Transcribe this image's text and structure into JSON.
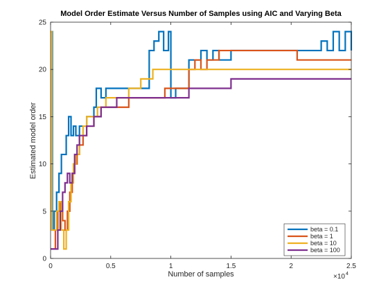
{
  "chart_data": {
    "type": "line",
    "title": "Model Order Estimate Versus Number of Samples using AIC and Varying Beta",
    "xlabel": "Number of samples",
    "ylabel": "Estimated model order",
    "x_exponent_base": "×10",
    "x_exponent_power": "4",
    "xlim": [
      0,
      25000
    ],
    "ylim": [
      0,
      25
    ],
    "x_ticks": [
      0,
      5000,
      10000,
      15000,
      20000,
      25000
    ],
    "x_tick_labels": [
      "0",
      "0.5",
      "1",
      "1.5",
      "2",
      "2.5"
    ],
    "y_ticks": [
      0,
      5,
      10,
      15,
      20,
      25
    ],
    "y_tick_labels": [
      "0",
      "5",
      "10",
      "15",
      "20",
      "25"
    ],
    "grid": false,
    "legend_position": "bottom-right",
    "series": [
      {
        "name": "beta = 0.1",
        "color": "#0072BD",
        "points": [
          [
            0,
            24
          ],
          [
            150,
            3
          ],
          [
            300,
            5
          ],
          [
            500,
            7
          ],
          [
            700,
            9
          ],
          [
            900,
            11
          ],
          [
            1100,
            11
          ],
          [
            1300,
            13
          ],
          [
            1500,
            15
          ],
          [
            1700,
            13
          ],
          [
            1900,
            14
          ],
          [
            2100,
            13
          ],
          [
            2400,
            14
          ],
          [
            2700,
            14
          ],
          [
            3000,
            15
          ],
          [
            3300,
            15
          ],
          [
            3600,
            16
          ],
          [
            3800,
            18
          ],
          [
            4200,
            17
          ],
          [
            4600,
            18
          ],
          [
            5000,
            18
          ],
          [
            5500,
            18
          ],
          [
            6000,
            18
          ],
          [
            6500,
            18
          ],
          [
            7000,
            18
          ],
          [
            7500,
            18
          ],
          [
            8000,
            18
          ],
          [
            8200,
            22
          ],
          [
            8600,
            23
          ],
          [
            9000,
            24
          ],
          [
            9400,
            22
          ],
          [
            9800,
            24
          ],
          [
            10000,
            17
          ],
          [
            10400,
            18
          ],
          [
            11000,
            18
          ],
          [
            11500,
            21
          ],
          [
            12000,
            21
          ],
          [
            12500,
            22
          ],
          [
            13000,
            21
          ],
          [
            13500,
            22
          ],
          [
            14000,
            21
          ],
          [
            15000,
            22
          ],
          [
            16000,
            22
          ],
          [
            17000,
            22
          ],
          [
            18000,
            22
          ],
          [
            19000,
            22
          ],
          [
            20000,
            22
          ],
          [
            21000,
            22
          ],
          [
            22000,
            22
          ],
          [
            22500,
            23
          ],
          [
            23000,
            22
          ],
          [
            23500,
            24
          ],
          [
            24000,
            22
          ],
          [
            24500,
            24
          ],
          [
            25000,
            22
          ]
        ]
      },
      {
        "name": "beta = 1",
        "color": "#D95319",
        "points": [
          [
            0,
            1
          ],
          [
            150,
            1
          ],
          [
            400,
            3
          ],
          [
            600,
            5
          ],
          [
            800,
            6
          ],
          [
            1000,
            4
          ],
          [
            1200,
            3
          ],
          [
            1400,
            5
          ],
          [
            1600,
            7
          ],
          [
            1800,
            9
          ],
          [
            2000,
            10
          ],
          [
            2200,
            11
          ],
          [
            2400,
            12
          ],
          [
            2700,
            13
          ],
          [
            3000,
            14
          ],
          [
            3300,
            14
          ],
          [
            3600,
            15
          ],
          [
            3900,
            15
          ],
          [
            4200,
            16
          ],
          [
            4600,
            16
          ],
          [
            5000,
            16
          ],
          [
            5500,
            16
          ],
          [
            6000,
            16
          ],
          [
            6500,
            17
          ],
          [
            7000,
            17
          ],
          [
            7500,
            17
          ],
          [
            8000,
            17
          ],
          [
            8500,
            17
          ],
          [
            9000,
            17
          ],
          [
            9500,
            18
          ],
          [
            10000,
            18
          ],
          [
            10500,
            18
          ],
          [
            11000,
            18
          ],
          [
            11500,
            20
          ],
          [
            12000,
            21
          ],
          [
            12500,
            20
          ],
          [
            13000,
            21
          ],
          [
            14000,
            22
          ],
          [
            15000,
            22
          ],
          [
            16000,
            22
          ],
          [
            17000,
            22
          ],
          [
            18000,
            22
          ],
          [
            19000,
            22
          ],
          [
            20000,
            22
          ],
          [
            20500,
            21
          ],
          [
            21000,
            21
          ],
          [
            22000,
            21
          ],
          [
            23000,
            21
          ],
          [
            24000,
            21
          ],
          [
            25000,
            21
          ]
        ]
      },
      {
        "name": "beta = 10",
        "color": "#EDB120",
        "points": [
          [
            0,
            24
          ],
          [
            100,
            3
          ],
          [
            300,
            3
          ],
          [
            500,
            5
          ],
          [
            700,
            6
          ],
          [
            900,
            3
          ],
          [
            1100,
            1
          ],
          [
            1300,
            3
          ],
          [
            1500,
            6
          ],
          [
            1700,
            8
          ],
          [
            1900,
            10
          ],
          [
            2100,
            11
          ],
          [
            2400,
            13
          ],
          [
            2700,
            14
          ],
          [
            3000,
            15
          ],
          [
            3300,
            15
          ],
          [
            3600,
            15
          ],
          [
            3900,
            16
          ],
          [
            4200,
            16
          ],
          [
            4600,
            17
          ],
          [
            5000,
            17
          ],
          [
            5500,
            17
          ],
          [
            6000,
            17
          ],
          [
            6500,
            18
          ],
          [
            7000,
            18
          ],
          [
            7500,
            19
          ],
          [
            8000,
            19
          ],
          [
            8500,
            20
          ],
          [
            9000,
            20
          ],
          [
            9500,
            20
          ],
          [
            10000,
            20
          ],
          [
            10500,
            20
          ],
          [
            11000,
            20
          ],
          [
            11500,
            20
          ],
          [
            12000,
            20
          ],
          [
            12500,
            20
          ],
          [
            13000,
            20
          ],
          [
            13500,
            20
          ],
          [
            14000,
            20
          ],
          [
            15000,
            20
          ],
          [
            16000,
            20
          ],
          [
            17000,
            20
          ],
          [
            18000,
            20
          ],
          [
            19000,
            20
          ],
          [
            20000,
            20
          ],
          [
            21000,
            20
          ],
          [
            22000,
            20
          ],
          [
            23000,
            20
          ],
          [
            24000,
            20
          ],
          [
            25000,
            20
          ]
        ]
      },
      {
        "name": "beta = 100",
        "color": "#7E2F8E",
        "points": [
          [
            0,
            1
          ],
          [
            200,
            1
          ],
          [
            400,
            1
          ],
          [
            600,
            3
          ],
          [
            800,
            5
          ],
          [
            1000,
            7
          ],
          [
            1200,
            8
          ],
          [
            1400,
            9
          ],
          [
            1600,
            8
          ],
          [
            1800,
            9
          ],
          [
            2000,
            11
          ],
          [
            2200,
            12
          ],
          [
            2400,
            13
          ],
          [
            2700,
            13
          ],
          [
            3000,
            14
          ],
          [
            3300,
            14
          ],
          [
            3600,
            15
          ],
          [
            3900,
            15
          ],
          [
            4200,
            16
          ],
          [
            4600,
            16
          ],
          [
            5000,
            16
          ],
          [
            5500,
            17
          ],
          [
            6000,
            17
          ],
          [
            6500,
            17
          ],
          [
            7000,
            17
          ],
          [
            7500,
            17
          ],
          [
            8000,
            17
          ],
          [
            8500,
            17
          ],
          [
            9000,
            17
          ],
          [
            9500,
            17
          ],
          [
            10000,
            17
          ],
          [
            10500,
            17
          ],
          [
            11000,
            17
          ],
          [
            11500,
            18
          ],
          [
            12000,
            18
          ],
          [
            12500,
            18
          ],
          [
            13000,
            18
          ],
          [
            13500,
            18
          ],
          [
            14000,
            18
          ],
          [
            15000,
            19
          ],
          [
            15500,
            19
          ],
          [
            16000,
            19
          ],
          [
            17000,
            19
          ],
          [
            18000,
            19
          ],
          [
            19000,
            19
          ],
          [
            20000,
            19
          ],
          [
            21000,
            19
          ],
          [
            22000,
            19
          ],
          [
            23000,
            19
          ],
          [
            24000,
            19
          ],
          [
            25000,
            19
          ]
        ]
      }
    ]
  }
}
